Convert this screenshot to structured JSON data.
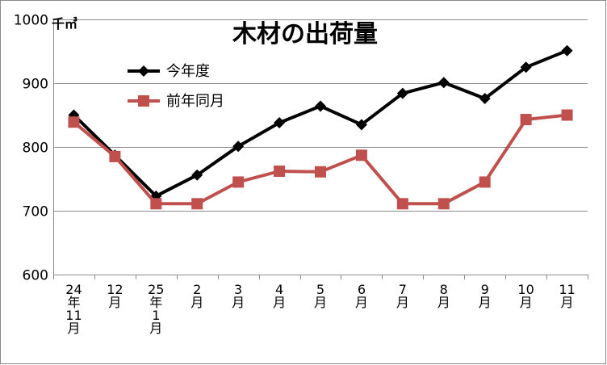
{
  "chart_data": {
    "type": "line",
    "title": "木材の出荷量",
    "unit_label": "千㎥",
    "categories": [
      "24年11月",
      "12月",
      "25年1月",
      "2月",
      "3月",
      "4月",
      "5月",
      "6月",
      "7月",
      "8月",
      "9月",
      "10月",
      "11月"
    ],
    "series": [
      {
        "name": "今年度",
        "color": "#000000",
        "marker": "diamond",
        "values": [
          850,
          787,
          723,
          756,
          801,
          838,
          864,
          835,
          884,
          901,
          876,
          925,
          951
        ]
      },
      {
        "name": "前年同月",
        "color": "#c0504d",
        "marker": "square",
        "values": [
          839,
          785,
          711,
          711,
          745,
          762,
          761,
          787,
          711,
          711,
          745,
          843,
          850
        ]
      }
    ],
    "ylim": [
      600,
      1000
    ],
    "yticks": [
      600,
      700,
      800,
      900,
      1000
    ],
    "grid": true,
    "legend_position": "top-left"
  }
}
